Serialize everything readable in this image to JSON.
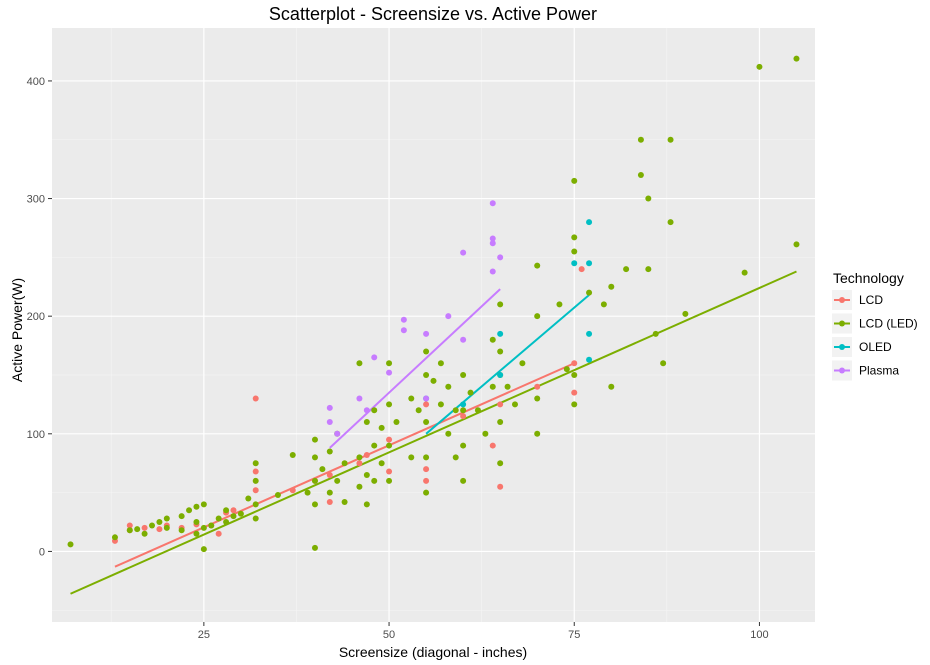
{
  "chart_data": {
    "type": "scatter",
    "title": "Scatterplot - Screensize vs. Active Power",
    "xlabel": "Screensize (diagonal - inches)",
    "ylabel": "Active Power(W)",
    "xlim": [
      4.5,
      107.5
    ],
    "ylim": [
      -60,
      445
    ],
    "x_ticks": [
      25,
      50,
      75,
      100
    ],
    "y_ticks": [
      0,
      100,
      200,
      300,
      400
    ],
    "grid": true,
    "legend": {
      "title": "Technology",
      "position": "right"
    },
    "series": [
      {
        "name": "LCD",
        "color": "#F8766D",
        "trend": [
          [
            13,
            -13
          ],
          [
            75,
            160
          ]
        ],
        "points": [
          [
            13,
            9
          ],
          [
            15,
            22
          ],
          [
            15,
            18
          ],
          [
            17,
            20
          ],
          [
            19,
            19
          ],
          [
            20,
            22
          ],
          [
            22,
            20
          ],
          [
            24,
            23
          ],
          [
            26,
            22
          ],
          [
            27,
            15
          ],
          [
            28,
            33
          ],
          [
            29,
            35
          ],
          [
            32,
            130
          ],
          [
            32,
            68
          ],
          [
            32,
            52
          ],
          [
            37,
            52
          ],
          [
            40,
            60
          ],
          [
            42,
            65
          ],
          [
            42,
            42
          ],
          [
            46,
            75
          ],
          [
            47,
            82
          ],
          [
            50,
            95
          ],
          [
            50,
            68
          ],
          [
            55,
            125
          ],
          [
            55,
            70
          ],
          [
            55,
            60
          ],
          [
            60,
            115
          ],
          [
            64,
            90
          ],
          [
            65,
            125
          ],
          [
            65,
            55
          ],
          [
            70,
            140
          ],
          [
            75,
            160
          ],
          [
            75,
            135
          ],
          [
            76,
            240
          ]
        ]
      },
      {
        "name": "LCD (LED)",
        "color": "#7CAE00",
        "trend": [
          [
            7,
            -36
          ],
          [
            105,
            238
          ]
        ],
        "points": [
          [
            7,
            6
          ],
          [
            13,
            12
          ],
          [
            15,
            18
          ],
          [
            16,
            19
          ],
          [
            17,
            15
          ],
          [
            18,
            22
          ],
          [
            19,
            25
          ],
          [
            20,
            20
          ],
          [
            20,
            28
          ],
          [
            22,
            30
          ],
          [
            22,
            18
          ],
          [
            23,
            35
          ],
          [
            24,
            38
          ],
          [
            24,
            25
          ],
          [
            24,
            15
          ],
          [
            25,
            40
          ],
          [
            25,
            20
          ],
          [
            25,
            2
          ],
          [
            26,
            22
          ],
          [
            27,
            28
          ],
          [
            28,
            25
          ],
          [
            28,
            35
          ],
          [
            29,
            30
          ],
          [
            30,
            32
          ],
          [
            31,
            45
          ],
          [
            32,
            75
          ],
          [
            32,
            60
          ],
          [
            32,
            40
          ],
          [
            32,
            28
          ],
          [
            35,
            48
          ],
          [
            37,
            82
          ],
          [
            39,
            50
          ],
          [
            40,
            95
          ],
          [
            40,
            80
          ],
          [
            40,
            60
          ],
          [
            40,
            40
          ],
          [
            40,
            3
          ],
          [
            41,
            70
          ],
          [
            42,
            85
          ],
          [
            42,
            50
          ],
          [
            43,
            100
          ],
          [
            43,
            60
          ],
          [
            44,
            75
          ],
          [
            44,
            42
          ],
          [
            46,
            160
          ],
          [
            46,
            80
          ],
          [
            46,
            55
          ],
          [
            47,
            110
          ],
          [
            47,
            65
          ],
          [
            47,
            40
          ],
          [
            48,
            120
          ],
          [
            48,
            90
          ],
          [
            48,
            60
          ],
          [
            49,
            105
          ],
          [
            49,
            75
          ],
          [
            50,
            160
          ],
          [
            50,
            125
          ],
          [
            50,
            90
          ],
          [
            50,
            60
          ],
          [
            51,
            110
          ],
          [
            53,
            130
          ],
          [
            53,
            80
          ],
          [
            54,
            120
          ],
          [
            55,
            170
          ],
          [
            55,
            150
          ],
          [
            55,
            110
          ],
          [
            55,
            80
          ],
          [
            55,
            50
          ],
          [
            56,
            145
          ],
          [
            57,
            160
          ],
          [
            57,
            125
          ],
          [
            58,
            140
          ],
          [
            58,
            100
          ],
          [
            59,
            120
          ],
          [
            59,
            80
          ],
          [
            60,
            150
          ],
          [
            60,
            120
          ],
          [
            60,
            90
          ],
          [
            60,
            60
          ],
          [
            61,
            135
          ],
          [
            62,
            120
          ],
          [
            63,
            100
          ],
          [
            64,
            180
          ],
          [
            64,
            140
          ],
          [
            65,
            210
          ],
          [
            65,
            170
          ],
          [
            65,
            150
          ],
          [
            65,
            110
          ],
          [
            65,
            75
          ],
          [
            66,
            140
          ],
          [
            67,
            125
          ],
          [
            68,
            160
          ],
          [
            70,
            243
          ],
          [
            70,
            200
          ],
          [
            70,
            130
          ],
          [
            70,
            100
          ],
          [
            73,
            210
          ],
          [
            74,
            155
          ],
          [
            75,
            315
          ],
          [
            75,
            267
          ],
          [
            75,
            255
          ],
          [
            75,
            150
          ],
          [
            75,
            125
          ],
          [
            77,
            220
          ],
          [
            79,
            210
          ],
          [
            80,
            225
          ],
          [
            80,
            140
          ],
          [
            82,
            240
          ],
          [
            84,
            350
          ],
          [
            84,
            320
          ],
          [
            85,
            300
          ],
          [
            85,
            240
          ],
          [
            86,
            185
          ],
          [
            87,
            160
          ],
          [
            88,
            350
          ],
          [
            88,
            280
          ],
          [
            90,
            202
          ],
          [
            98,
            237
          ],
          [
            100,
            412
          ],
          [
            105,
            419
          ],
          [
            105,
            261
          ]
        ]
      },
      {
        "name": "OLED",
        "color": "#00BFC4",
        "trend": [
          [
            55,
            100
          ],
          [
            77,
            218
          ]
        ],
        "points": [
          [
            55,
            130
          ],
          [
            60,
            125
          ],
          [
            65,
            150
          ],
          [
            65,
            185
          ],
          [
            75,
            245
          ],
          [
            77,
            280
          ],
          [
            77,
            245
          ],
          [
            77,
            185
          ],
          [
            77,
            163
          ]
        ]
      },
      {
        "name": "Plasma",
        "color": "#C77CFF",
        "trend": [
          [
            42,
            88
          ],
          [
            65,
            223
          ]
        ],
        "points": [
          [
            42,
            122
          ],
          [
            42,
            110
          ],
          [
            43,
            100
          ],
          [
            46,
            130
          ],
          [
            47,
            120
          ],
          [
            48,
            165
          ],
          [
            50,
            152
          ],
          [
            52,
            188
          ],
          [
            52,
            197
          ],
          [
            55,
            185
          ],
          [
            55,
            130
          ],
          [
            58,
            200
          ],
          [
            60,
            254
          ],
          [
            60,
            180
          ],
          [
            64,
            296
          ],
          [
            64,
            266
          ],
          [
            64,
            262
          ],
          [
            64,
            238
          ],
          [
            65,
            250
          ]
        ]
      }
    ]
  }
}
